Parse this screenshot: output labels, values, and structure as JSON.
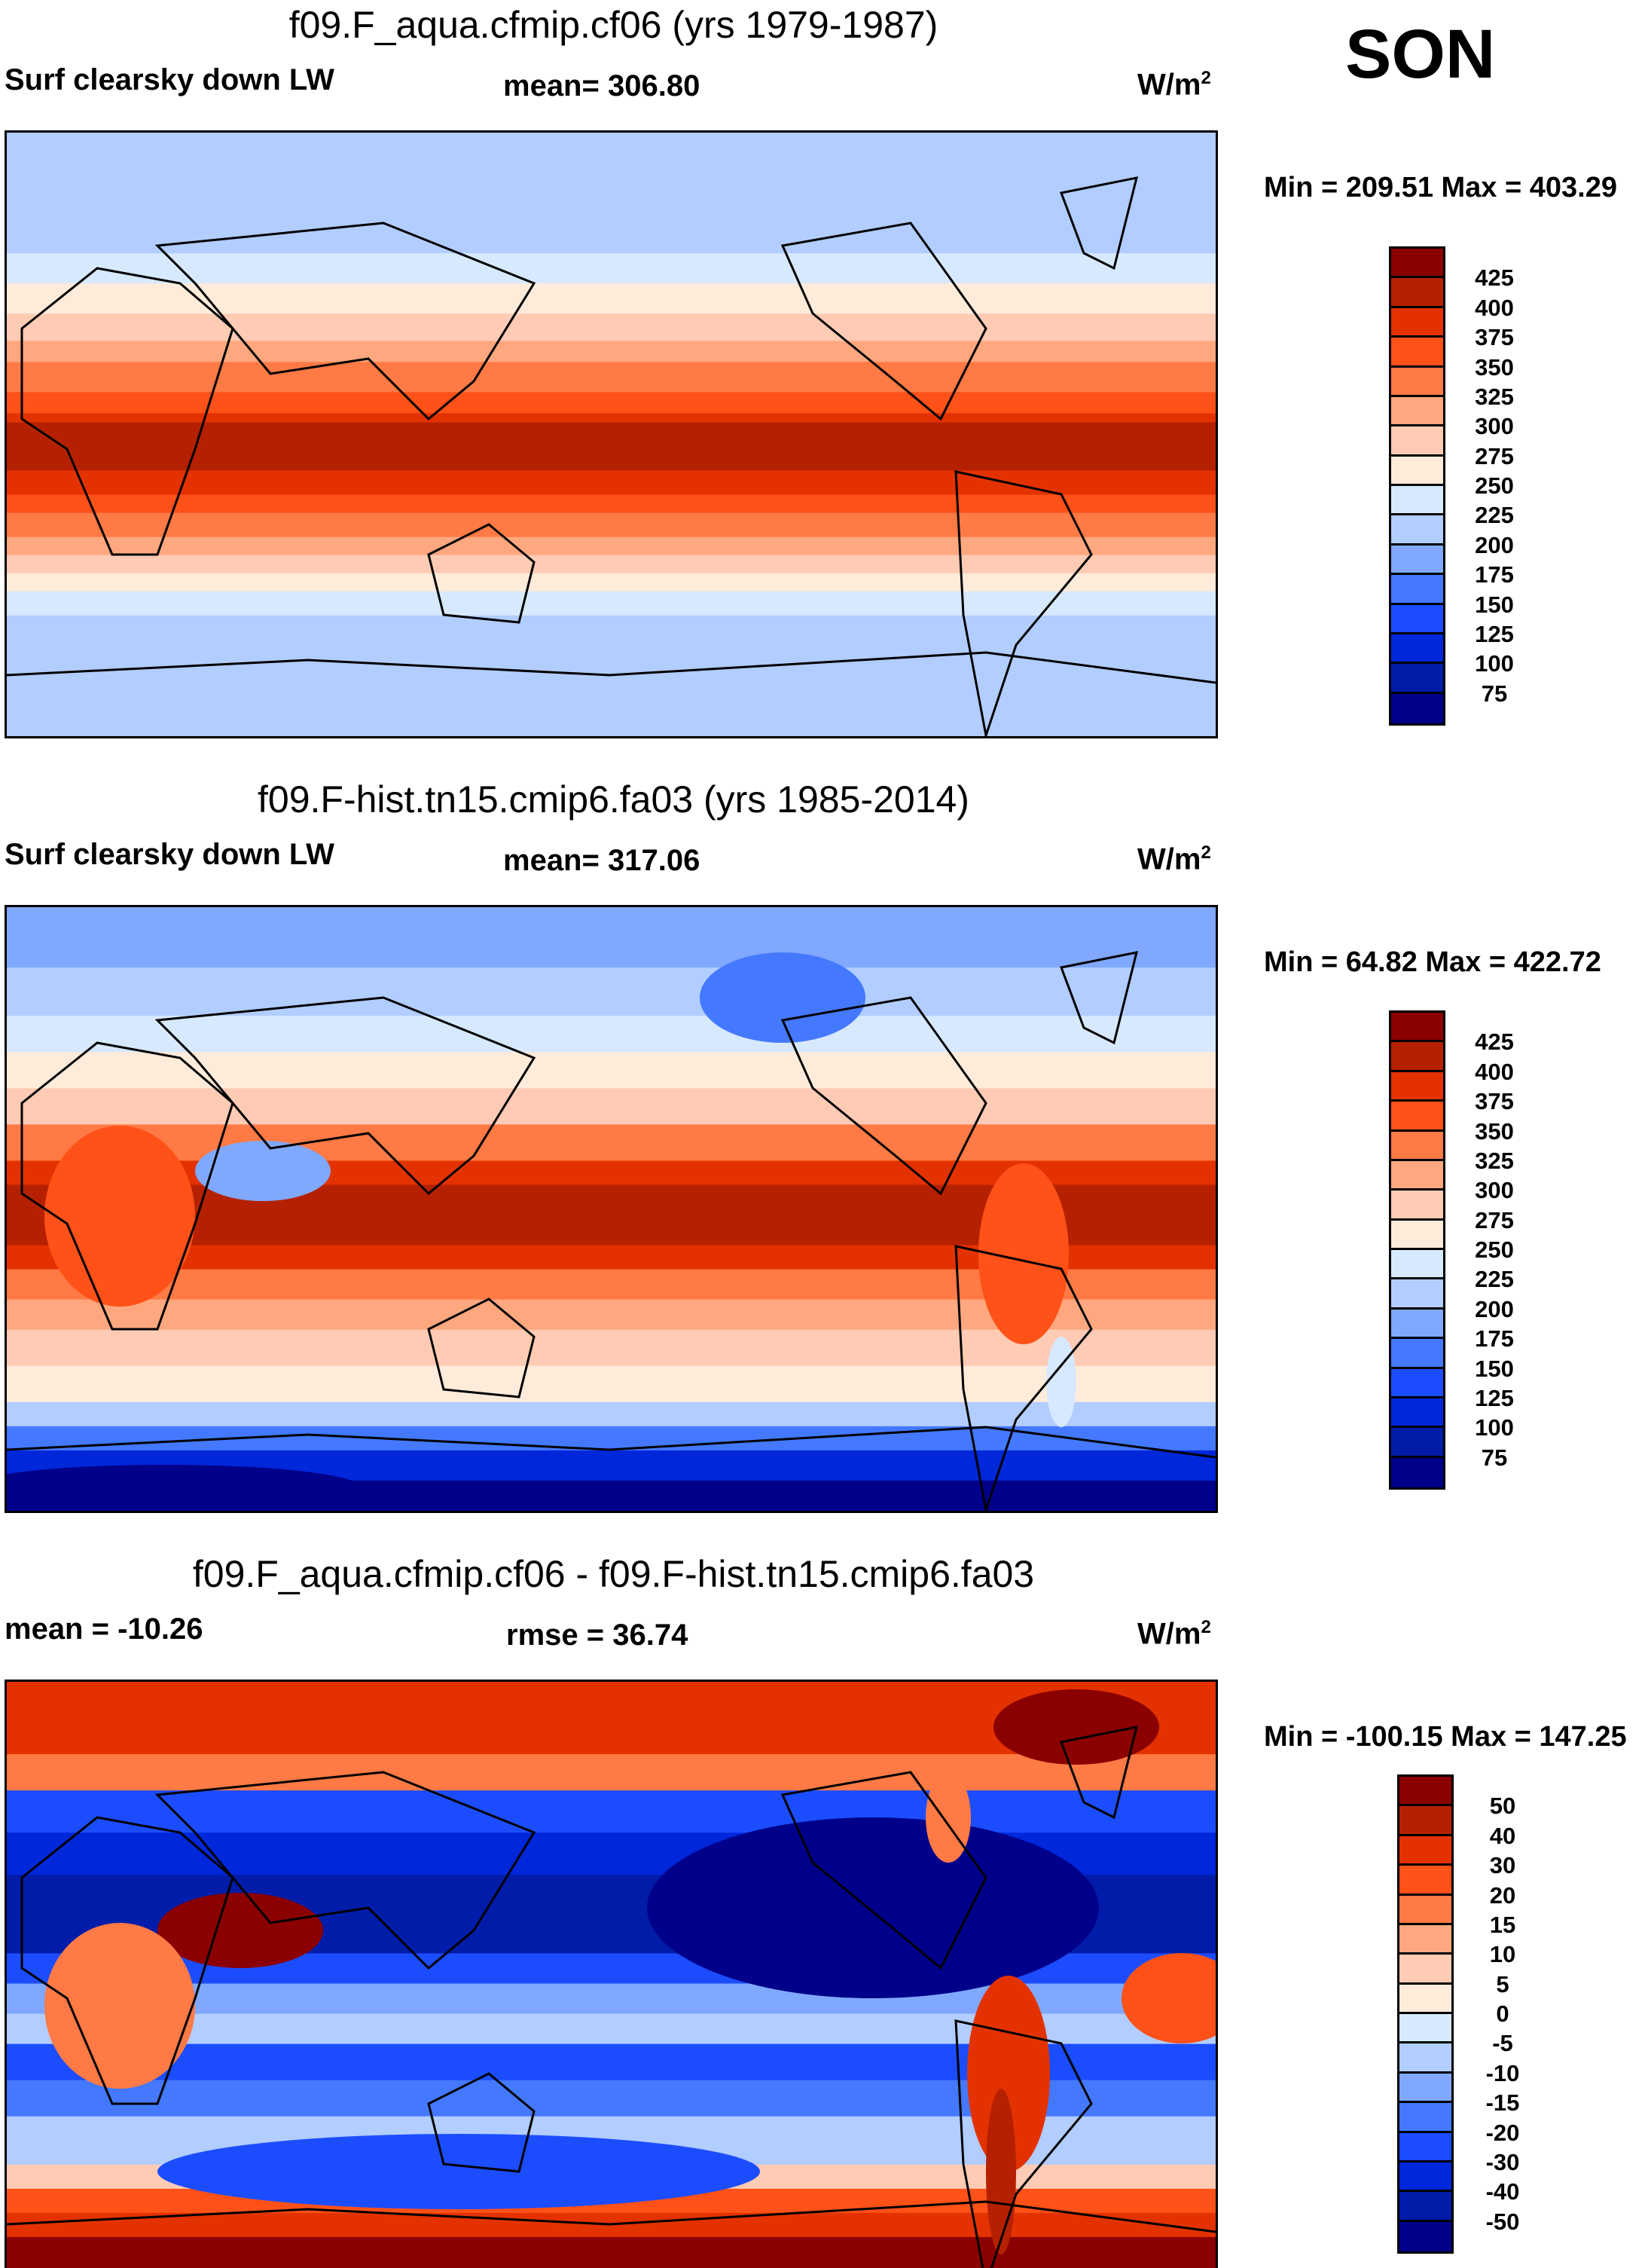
{
  "season": "SON",
  "panels": [
    {
      "title": "f09.F_aqua.cfmip.cf06 (yrs 1979-1987)",
      "left_label": "Surf clearsky down LW",
      "center_label": "mean= 306.80",
      "units": "W/m",
      "units_sup": "2",
      "minmax": "Min = 209.51 Max = 403.29",
      "colorbar_labels": [
        "425",
        "400",
        "375",
        "350",
        "325",
        "300",
        "275",
        "250",
        "225",
        "200",
        "175",
        "150",
        "125",
        "100",
        "75"
      ]
    },
    {
      "title": "f09.F-hist.tn15.cmip6.fa03 (yrs 1985-2014)",
      "left_label": "Surf clearsky down LW",
      "center_label": "mean= 317.06",
      "units": "W/m",
      "units_sup": "2",
      "minmax": "Min =  64.82 Max = 422.72",
      "colorbar_labels": [
        "425",
        "400",
        "375",
        "350",
        "325",
        "300",
        "275",
        "250",
        "225",
        "200",
        "175",
        "150",
        "125",
        "100",
        "75"
      ]
    },
    {
      "title": "f09.F_aqua.cfmip.cf06 - f09.F-hist.tn15.cmip6.fa03",
      "left_label": "mean = -10.26",
      "center_label": "rmse =  36.74",
      "units": "W/m",
      "units_sup": "2",
      "minmax": "Min = -100.15 Max = 147.25",
      "colorbar_labels": [
        "50",
        "40",
        "30",
        "20",
        "15",
        "10",
        "5",
        "0",
        "-5",
        "-10",
        "-15",
        "-20",
        "-30",
        "-40",
        "-50"
      ]
    }
  ],
  "colors": [
    "#8b0000",
    "#b52100",
    "#e33200",
    "#ff5118",
    "#ff7a45",
    "#ffa87f",
    "#ffcbb4",
    "#ffebda",
    "#d7e9ff",
    "#b2cdff",
    "#80a8ff",
    "#4479ff",
    "#1b4dff",
    "#0027d9",
    "#001ca8",
    "#00008a"
  ]
}
